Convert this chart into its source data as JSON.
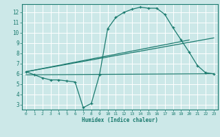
{
  "xlabel": "Humidex (Indice chaleur)",
  "background_color": "#cce8e8",
  "grid_color": "#ffffff",
  "line_color": "#1a7a6e",
  "xlim": [
    -0.5,
    23.5
  ],
  "ylim": [
    2.5,
    12.8
  ],
  "xticks": [
    0,
    1,
    2,
    3,
    4,
    5,
    6,
    7,
    8,
    9,
    10,
    11,
    12,
    13,
    14,
    15,
    16,
    17,
    18,
    19,
    20,
    21,
    22,
    23
  ],
  "yticks": [
    3,
    4,
    5,
    6,
    7,
    8,
    9,
    10,
    11,
    12
  ],
  "curve1_x": [
    0,
    1,
    2,
    3,
    4,
    5,
    6,
    7,
    8,
    9,
    10,
    11,
    12,
    13,
    14,
    15,
    16,
    17,
    18,
    19,
    20,
    21,
    22,
    23
  ],
  "curve1_y": [
    6.2,
    5.9,
    5.6,
    5.4,
    5.4,
    5.3,
    5.2,
    2.7,
    3.1,
    5.9,
    10.4,
    11.5,
    12.0,
    12.3,
    12.5,
    12.4,
    12.4,
    11.8,
    10.5,
    9.3,
    8.1,
    6.8,
    6.1,
    6.0
  ],
  "line1_x": [
    0,
    23
  ],
  "line1_y": [
    6.2,
    9.5
  ],
  "line2_x": [
    0,
    20
  ],
  "line2_y": [
    6.2,
    9.3
  ],
  "line3_x": [
    0,
    23
  ],
  "line3_y": [
    5.9,
    6.0
  ]
}
